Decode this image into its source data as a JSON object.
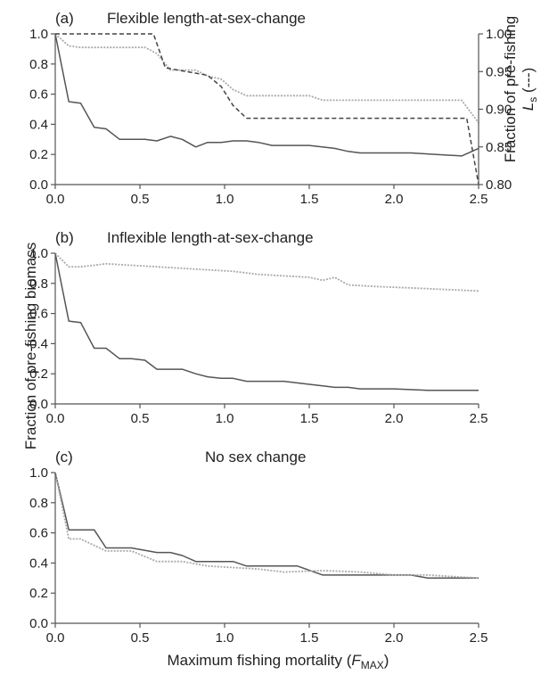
{
  "figure": {
    "xlabel_main": "Maximum fishing mortality (",
    "xlabel_var": "F",
    "xlabel_sub": "MAX",
    "xlabel_close": ")",
    "ylabel_left": "Fraction of pre-fishing biomass",
    "ylabel_right_line1": "Fraction of pre-fishing",
    "ylabel_right_var": "L",
    "ylabel_right_sub": "s",
    "ylabel_right_suffix": " (---)"
  },
  "colors": {
    "solid_series": "#555555",
    "dotted_series": "#aaaaaa",
    "dashed_series": "#444444",
    "axis": "#555555"
  },
  "chart_data": [
    {
      "type": "line",
      "panel_label": "(a)",
      "title": "Flexible length-at-sex-change",
      "xlim": [
        0,
        2.5
      ],
      "ylim": [
        0,
        1.0
      ],
      "xticks": [
        "0.0",
        "0.5",
        "1.0",
        "1.5",
        "2.0",
        "2.5"
      ],
      "yticks": [
        "0.0",
        "0.2",
        "0.4",
        "0.6",
        "0.8",
        "1.0"
      ],
      "y2lim": [
        0.8,
        1.0
      ],
      "y2ticks": [
        "0.80",
        "0.85",
        "0.90",
        "0.95",
        "1.00"
      ],
      "grid": false,
      "series": [
        {
          "style": "solid",
          "axis": "left",
          "x": [
            0,
            0.08,
            0.15,
            0.23,
            0.3,
            0.38,
            0.45,
            0.53,
            0.6,
            0.68,
            0.75,
            0.83,
            0.9,
            0.98,
            1.05,
            1.13,
            1.2,
            1.28,
            1.35,
            1.5,
            1.65,
            1.73,
            1.8,
            1.95,
            2.1,
            2.25,
            2.4,
            2.5
          ],
          "y": [
            1.0,
            0.55,
            0.54,
            0.38,
            0.37,
            0.3,
            0.3,
            0.3,
            0.29,
            0.32,
            0.3,
            0.25,
            0.28,
            0.28,
            0.29,
            0.29,
            0.28,
            0.26,
            0.26,
            0.26,
            0.24,
            0.22,
            0.21,
            0.21,
            0.21,
            0.2,
            0.19,
            0.24
          ]
        },
        {
          "style": "dotted",
          "axis": "left",
          "x": [
            0,
            0.08,
            0.15,
            0.53,
            0.6,
            0.68,
            0.83,
            0.9,
            0.98,
            1.05,
            1.13,
            1.5,
            1.58,
            2.4,
            2.5
          ],
          "y": [
            1.0,
            0.92,
            0.91,
            0.91,
            0.87,
            0.76,
            0.76,
            0.72,
            0.7,
            0.63,
            0.59,
            0.59,
            0.56,
            0.56,
            0.41
          ]
        },
        {
          "style": "dashed",
          "axis": "right",
          "x": [
            0,
            0.58,
            0.65,
            0.9,
            0.98,
            1.05,
            1.13,
            2.43,
            2.5
          ],
          "y": [
            1.0,
            1.0,
            0.955,
            0.945,
            0.93,
            0.905,
            0.888,
            0.888,
            0.8
          ]
        }
      ]
    },
    {
      "type": "line",
      "panel_label": "(b)",
      "title": "Inflexible length-at-sex-change",
      "xlim": [
        0,
        2.5
      ],
      "ylim": [
        0,
        1.0
      ],
      "xticks": [
        "0.0",
        "0.5",
        "1.0",
        "1.5",
        "2.0",
        "2.5"
      ],
      "yticks": [
        "0.0",
        "0.2",
        "0.4",
        "0.6",
        "0.8",
        "1.0"
      ],
      "grid": false,
      "series": [
        {
          "style": "solid",
          "axis": "left",
          "x": [
            0,
            0.08,
            0.15,
            0.23,
            0.3,
            0.38,
            0.45,
            0.53,
            0.6,
            0.68,
            0.75,
            0.83,
            0.9,
            0.98,
            1.05,
            1.13,
            1.2,
            1.28,
            1.35,
            1.5,
            1.58,
            1.65,
            1.73,
            1.8,
            1.88,
            2.0,
            2.2,
            2.5
          ],
          "y": [
            1.0,
            0.55,
            0.54,
            0.37,
            0.37,
            0.3,
            0.3,
            0.29,
            0.23,
            0.23,
            0.23,
            0.2,
            0.18,
            0.17,
            0.17,
            0.15,
            0.15,
            0.15,
            0.15,
            0.13,
            0.12,
            0.11,
            0.11,
            0.1,
            0.1,
            0.1,
            0.09,
            0.09
          ]
        },
        {
          "style": "dotted",
          "axis": "left",
          "x": [
            0,
            0.08,
            0.15,
            0.23,
            0.3,
            0.45,
            0.6,
            0.75,
            0.9,
            1.05,
            1.2,
            1.35,
            1.5,
            1.58,
            1.65,
            1.73,
            1.88,
            2.1,
            2.3,
            2.5
          ],
          "y": [
            1.0,
            0.91,
            0.91,
            0.92,
            0.93,
            0.92,
            0.91,
            0.9,
            0.89,
            0.88,
            0.86,
            0.85,
            0.84,
            0.82,
            0.84,
            0.79,
            0.78,
            0.77,
            0.76,
            0.75
          ]
        }
      ]
    },
    {
      "type": "line",
      "panel_label": "(c)",
      "title": "No sex change",
      "xlim": [
        0,
        2.5
      ],
      "ylim": [
        0,
        1.0
      ],
      "xticks": [
        "0.0",
        "0.5",
        "1.0",
        "1.5",
        "2.0",
        "2.5"
      ],
      "yticks": [
        "0.0",
        "0.2",
        "0.4",
        "0.6",
        "0.8",
        "1.0"
      ],
      "grid": false,
      "series": [
        {
          "style": "solid",
          "axis": "left",
          "x": [
            0,
            0.08,
            0.23,
            0.3,
            0.45,
            0.6,
            0.68,
            0.75,
            0.83,
            1.05,
            1.13,
            1.28,
            1.43,
            1.58,
            1.73,
            1.88,
            2.1,
            2.2,
            2.5
          ],
          "y": [
            1.0,
            0.62,
            0.62,
            0.5,
            0.5,
            0.47,
            0.47,
            0.45,
            0.41,
            0.41,
            0.38,
            0.38,
            0.38,
            0.32,
            0.32,
            0.32,
            0.32,
            0.3,
            0.3
          ]
        },
        {
          "style": "dotted",
          "axis": "left",
          "x": [
            0,
            0.08,
            0.15,
            0.3,
            0.45,
            0.6,
            0.75,
            0.9,
            1.05,
            1.2,
            1.35,
            1.58,
            1.8,
            2.0,
            2.2,
            2.5
          ],
          "y": [
            1.0,
            0.56,
            0.56,
            0.48,
            0.48,
            0.41,
            0.41,
            0.38,
            0.37,
            0.36,
            0.34,
            0.35,
            0.34,
            0.32,
            0.32,
            0.3
          ]
        }
      ]
    }
  ]
}
